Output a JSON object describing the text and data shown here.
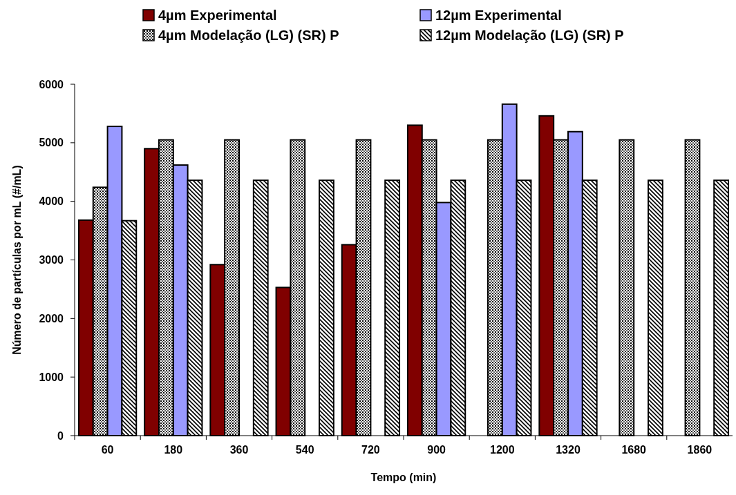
{
  "chart_data": {
    "type": "bar",
    "xlabel": "Tempo (min)",
    "ylabel": "Número de partículas por mL (#/mL)",
    "categories": [
      "60",
      "180",
      "360",
      "540",
      "720",
      "900",
      "1200",
      "1320",
      "1680",
      "1860"
    ],
    "series": [
      {
        "name": "4µm Experimental",
        "color": "#800000",
        "values": [
          3680,
          4900,
          2920,
          2530,
          3260,
          5300,
          null,
          5460,
          null,
          null
        ]
      },
      {
        "name": "4µm Modelação (LG) (SR) P",
        "color": "#000000",
        "values": [
          4240,
          5050,
          5050,
          5050,
          5050,
          5050,
          5050,
          5050,
          5050,
          5050
        ]
      },
      {
        "name": "12µm Experimental",
        "color": "#9999ff",
        "values": [
          5280,
          4620,
          null,
          null,
          null,
          3980,
          5660,
          5190,
          null,
          null
        ]
      },
      {
        "name": "12µm Modelação (LG) (SR) P",
        "color": "#000000",
        "values": [
          3670,
          4360,
          4360,
          4360,
          4360,
          4360,
          4360,
          4360,
          4360,
          4360
        ]
      }
    ],
    "ylim": [
      0,
      6000
    ],
    "yticks": [
      0,
      1000,
      2000,
      3000,
      4000,
      5000,
      6000
    ],
    "grid": false,
    "legend": "top"
  }
}
